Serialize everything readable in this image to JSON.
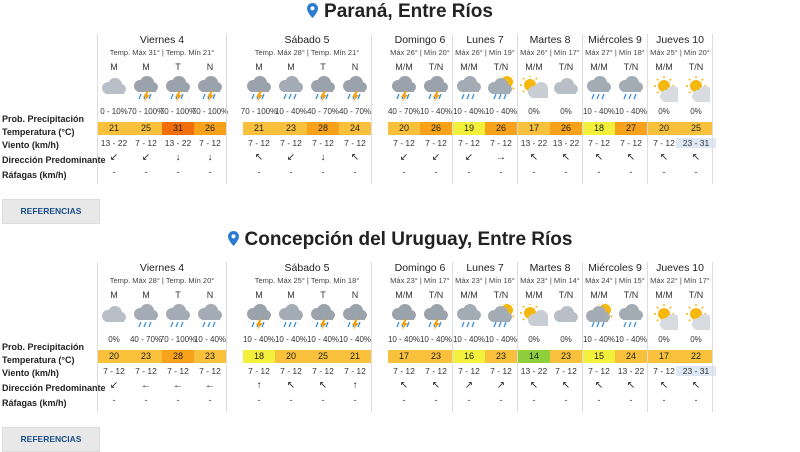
{
  "row_labels": [
    "Prob. Precipitación",
    "Temperatura (°C)",
    "Viento (km/h)",
    "Dirección Predominante",
    "Ráfagas (km/h)"
  ],
  "references_label": "REFERENCIAS",
  "colors": {
    "t17": "#f9c13b",
    "t18": "#f2f03a",
    "t19": "#f2f03a",
    "t20": "#f9c13b",
    "t21": "#f9c13b",
    "t22": "#f9c13b",
    "t23": "#f9c13b",
    "t24": "#f9c13b",
    "t25": "#f9c13b",
    "t26": "#f7a21a",
    "t27": "#f7a21a",
    "t28": "#f7a21a",
    "t31": "#f26d0c",
    "t14": "#8fcf3c",
    "t15": "#f2f03a",
    "t16": "#f2f03a"
  },
  "cities": [
    {
      "name": "Paraná, Entre Ríos",
      "days": [
        {
          "name": "Viernes 4",
          "temps": "Temp. Máx 31° | Temp. Mín 21°",
          "periods": [
            {
              "label": "M",
              "icon": "cloud",
              "precip": "0 - 10%",
              "temp": "21",
              "wind": "13 - 22",
              "dir": "↙",
              "gust": "-"
            },
            {
              "label": "M",
              "icon": "storm",
              "precip": "70 - 100%",
              "temp": "25",
              "wind": "7 - 12",
              "dir": "↙",
              "gust": "-"
            },
            {
              "label": "T",
              "icon": "storm",
              "precip": "70 - 100%",
              "temp": "31",
              "wind": "13 - 22",
              "dir": "↓",
              "gust": "-"
            },
            {
              "label": "N",
              "icon": "storm",
              "precip": "70 - 100%",
              "temp": "26",
              "wind": "7 - 12",
              "dir": "↓",
              "gust": "-"
            }
          ]
        },
        {
          "name": "Sábado 5",
          "temps": "Temp. Máx 28° | Temp. Mín 21°",
          "periods": [
            {
              "label": "M",
              "icon": "storm",
              "precip": "70 - 100%",
              "temp": "21",
              "wind": "7 - 12",
              "dir": "↖",
              "gust": "-"
            },
            {
              "label": "M",
              "icon": "rain",
              "precip": "10 - 40%",
              "temp": "23",
              "wind": "7 - 12",
              "dir": "↙",
              "gust": "-"
            },
            {
              "label": "T",
              "icon": "storm",
              "precip": "40 - 70%",
              "temp": "28",
              "wind": "7 - 12",
              "dir": "↓",
              "gust": "-"
            },
            {
              "label": "N",
              "icon": "storm",
              "precip": "40 - 70%",
              "temp": "24",
              "wind": "7 - 12",
              "dir": "↖",
              "gust": "-"
            }
          ]
        },
        {
          "name": "Domingo 6",
          "temps": "Máx 26° | Mín 20°",
          "periods": [
            {
              "label": "M/M",
              "icon": "storm",
              "precip": "40 - 70%",
              "temp": "20",
              "wind": "7 - 12",
              "dir": "↙",
              "gust": "-"
            },
            {
              "label": "T/N",
              "icon": "storm",
              "precip": "10 - 40%",
              "temp": "26",
              "wind": "7 - 12",
              "dir": "↙",
              "gust": "-"
            }
          ]
        },
        {
          "name": "Lunes 7",
          "temps": "Máx 26° | Mín 19°",
          "periods": [
            {
              "label": "M/M",
              "icon": "rain",
              "precip": "10 - 40%",
              "temp": "19",
              "wind": "7 - 12",
              "dir": "↙",
              "gust": "-"
            },
            {
              "label": "T/N",
              "icon": "sunrain",
              "precip": "10 - 40%",
              "temp": "26",
              "wind": "7 - 12",
              "dir": "→",
              "gust": "-"
            }
          ]
        },
        {
          "name": "Martes 8",
          "temps": "Máx 26° | Mín 17°",
          "periods": [
            {
              "label": "M/M",
              "icon": "partly",
              "precip": "0%",
              "temp": "17",
              "wind": "13 - 22",
              "dir": "↖",
              "gust": "-"
            },
            {
              "label": "T/N",
              "icon": "cloud",
              "precip": "0%",
              "temp": "26",
              "wind": "13 - 22",
              "dir": "↖",
              "gust": "-"
            }
          ]
        },
        {
          "name": "Miércoles 9",
          "temps": "Máx 27° | Mín 18°",
          "periods": [
            {
              "label": "M/M",
              "icon": "rain",
              "precip": "10 - 40%",
              "temp": "18",
              "wind": "7 - 12",
              "dir": "↖",
              "gust": "-"
            },
            {
              "label": "T/N",
              "icon": "rain",
              "precip": "10 - 40%",
              "temp": "27",
              "wind": "7 - 12",
              "dir": "↖",
              "gust": "-"
            }
          ]
        },
        {
          "name": "Jueves 10",
          "temps": "Máx 25° | Mín 20°",
          "periods": [
            {
              "label": "M/M",
              "icon": "sun",
              "precip": "0%",
              "temp": "20",
              "wind": "7 - 12",
              "dir": "↖",
              "gust": "-",
              "hl": false
            },
            {
              "label": "T/N",
              "icon": "sun",
              "precip": "0%",
              "temp": "25",
              "wind": "23 - 31",
              "dir": "↖",
              "gust": "-",
              "hl": true
            }
          ]
        }
      ]
    },
    {
      "name": "Concepción del Uruguay, Entre Ríos",
      "days": [
        {
          "name": "Viernes 4",
          "temps": "Temp. Máx 28° | Temp. Mín 20°",
          "periods": [
            {
              "label": "M",
              "icon": "cloud",
              "precip": "0%",
              "temp": "20",
              "wind": "7 - 12",
              "dir": "↙",
              "gust": "-"
            },
            {
              "label": "M",
              "icon": "rain",
              "precip": "40 - 70%",
              "temp": "23",
              "wind": "7 - 12",
              "dir": "←",
              "gust": "-"
            },
            {
              "label": "T",
              "icon": "rain",
              "precip": "70 - 100%",
              "temp": "28",
              "wind": "7 - 12",
              "dir": "←",
              "gust": "-"
            },
            {
              "label": "N",
              "icon": "rain",
              "precip": "10 - 40%",
              "temp": "23",
              "wind": "7 - 12",
              "dir": "←",
              "gust": "-"
            }
          ]
        },
        {
          "name": "Sábado 5",
          "temps": "Temp. Máx 25° | Temp. Mín 18°",
          "periods": [
            {
              "label": "M",
              "icon": "storm",
              "precip": "10 - 40%",
              "temp": "18",
              "wind": "7 - 12",
              "dir": "↑",
              "gust": "-"
            },
            {
              "label": "M",
              "icon": "rain",
              "precip": "10 - 40%",
              "temp": "20",
              "wind": "7 - 12",
              "dir": "↖",
              "gust": "-"
            },
            {
              "label": "T",
              "icon": "storm",
              "precip": "10 - 40%",
              "temp": "25",
              "wind": "7 - 12",
              "dir": "↖",
              "gust": "-"
            },
            {
              "label": "N",
              "icon": "storm",
              "precip": "10 - 40%",
              "temp": "21",
              "wind": "7 - 12",
              "dir": "↑",
              "gust": "-"
            }
          ]
        },
        {
          "name": "Domingo 6",
          "temps": "Máx 23° | Mín 17°",
          "periods": [
            {
              "label": "M/M",
              "icon": "storm",
              "precip": "10 - 40%",
              "temp": "17",
              "wind": "7 - 12",
              "dir": "↖",
              "gust": "-"
            },
            {
              "label": "T/N",
              "icon": "storm",
              "precip": "10 - 40%",
              "temp": "23",
              "wind": "7 - 12",
              "dir": "↖",
              "gust": "-"
            }
          ]
        },
        {
          "name": "Lunes 7",
          "temps": "Máx 23° | Mín 16°",
          "periods": [
            {
              "label": "M/M",
              "icon": "rain",
              "precip": "10 - 40%",
              "temp": "16",
              "wind": "7 - 12",
              "dir": "↗",
              "gust": "-"
            },
            {
              "label": "T/N",
              "icon": "sunrain",
              "precip": "10 - 40%",
              "temp": "23",
              "wind": "7 - 12",
              "dir": "↗",
              "gust": "-"
            }
          ]
        },
        {
          "name": "Martes 8",
          "temps": "Máx 23° | Mín 14°",
          "periods": [
            {
              "label": "M/M",
              "icon": "partly",
              "precip": "0%",
              "temp": "14",
              "wind": "13 - 22",
              "dir": "↖",
              "gust": "-"
            },
            {
              "label": "T/N",
              "icon": "cloud",
              "precip": "0%",
              "temp": "23",
              "wind": "7 - 12",
              "dir": "↖",
              "gust": "-"
            }
          ]
        },
        {
          "name": "Miércoles 9",
          "temps": "Máx 24° | Mín 15°",
          "periods": [
            {
              "label": "M/M",
              "icon": "sunrain",
              "precip": "10 - 40%",
              "temp": "15",
              "wind": "7 - 12",
              "dir": "↖",
              "gust": "-"
            },
            {
              "label": "T/N",
              "icon": "rain",
              "precip": "10 - 40%",
              "temp": "24",
              "wind": "13 - 22",
              "dir": "↖",
              "gust": "-"
            }
          ]
        },
        {
          "name": "Jueves 10",
          "temps": "Máx 22° | Mín 17°",
          "periods": [
            {
              "label": "M/M",
              "icon": "sun",
              "precip": "0%",
              "temp": "17",
              "wind": "7 - 12",
              "dir": "↖",
              "gust": "-",
              "hl": false
            },
            {
              "label": "T/N",
              "icon": "sun",
              "precip": "0%",
              "temp": "22",
              "wind": "23 - 31",
              "dir": "↖",
              "gust": "-",
              "hl": true
            }
          ]
        }
      ]
    }
  ]
}
